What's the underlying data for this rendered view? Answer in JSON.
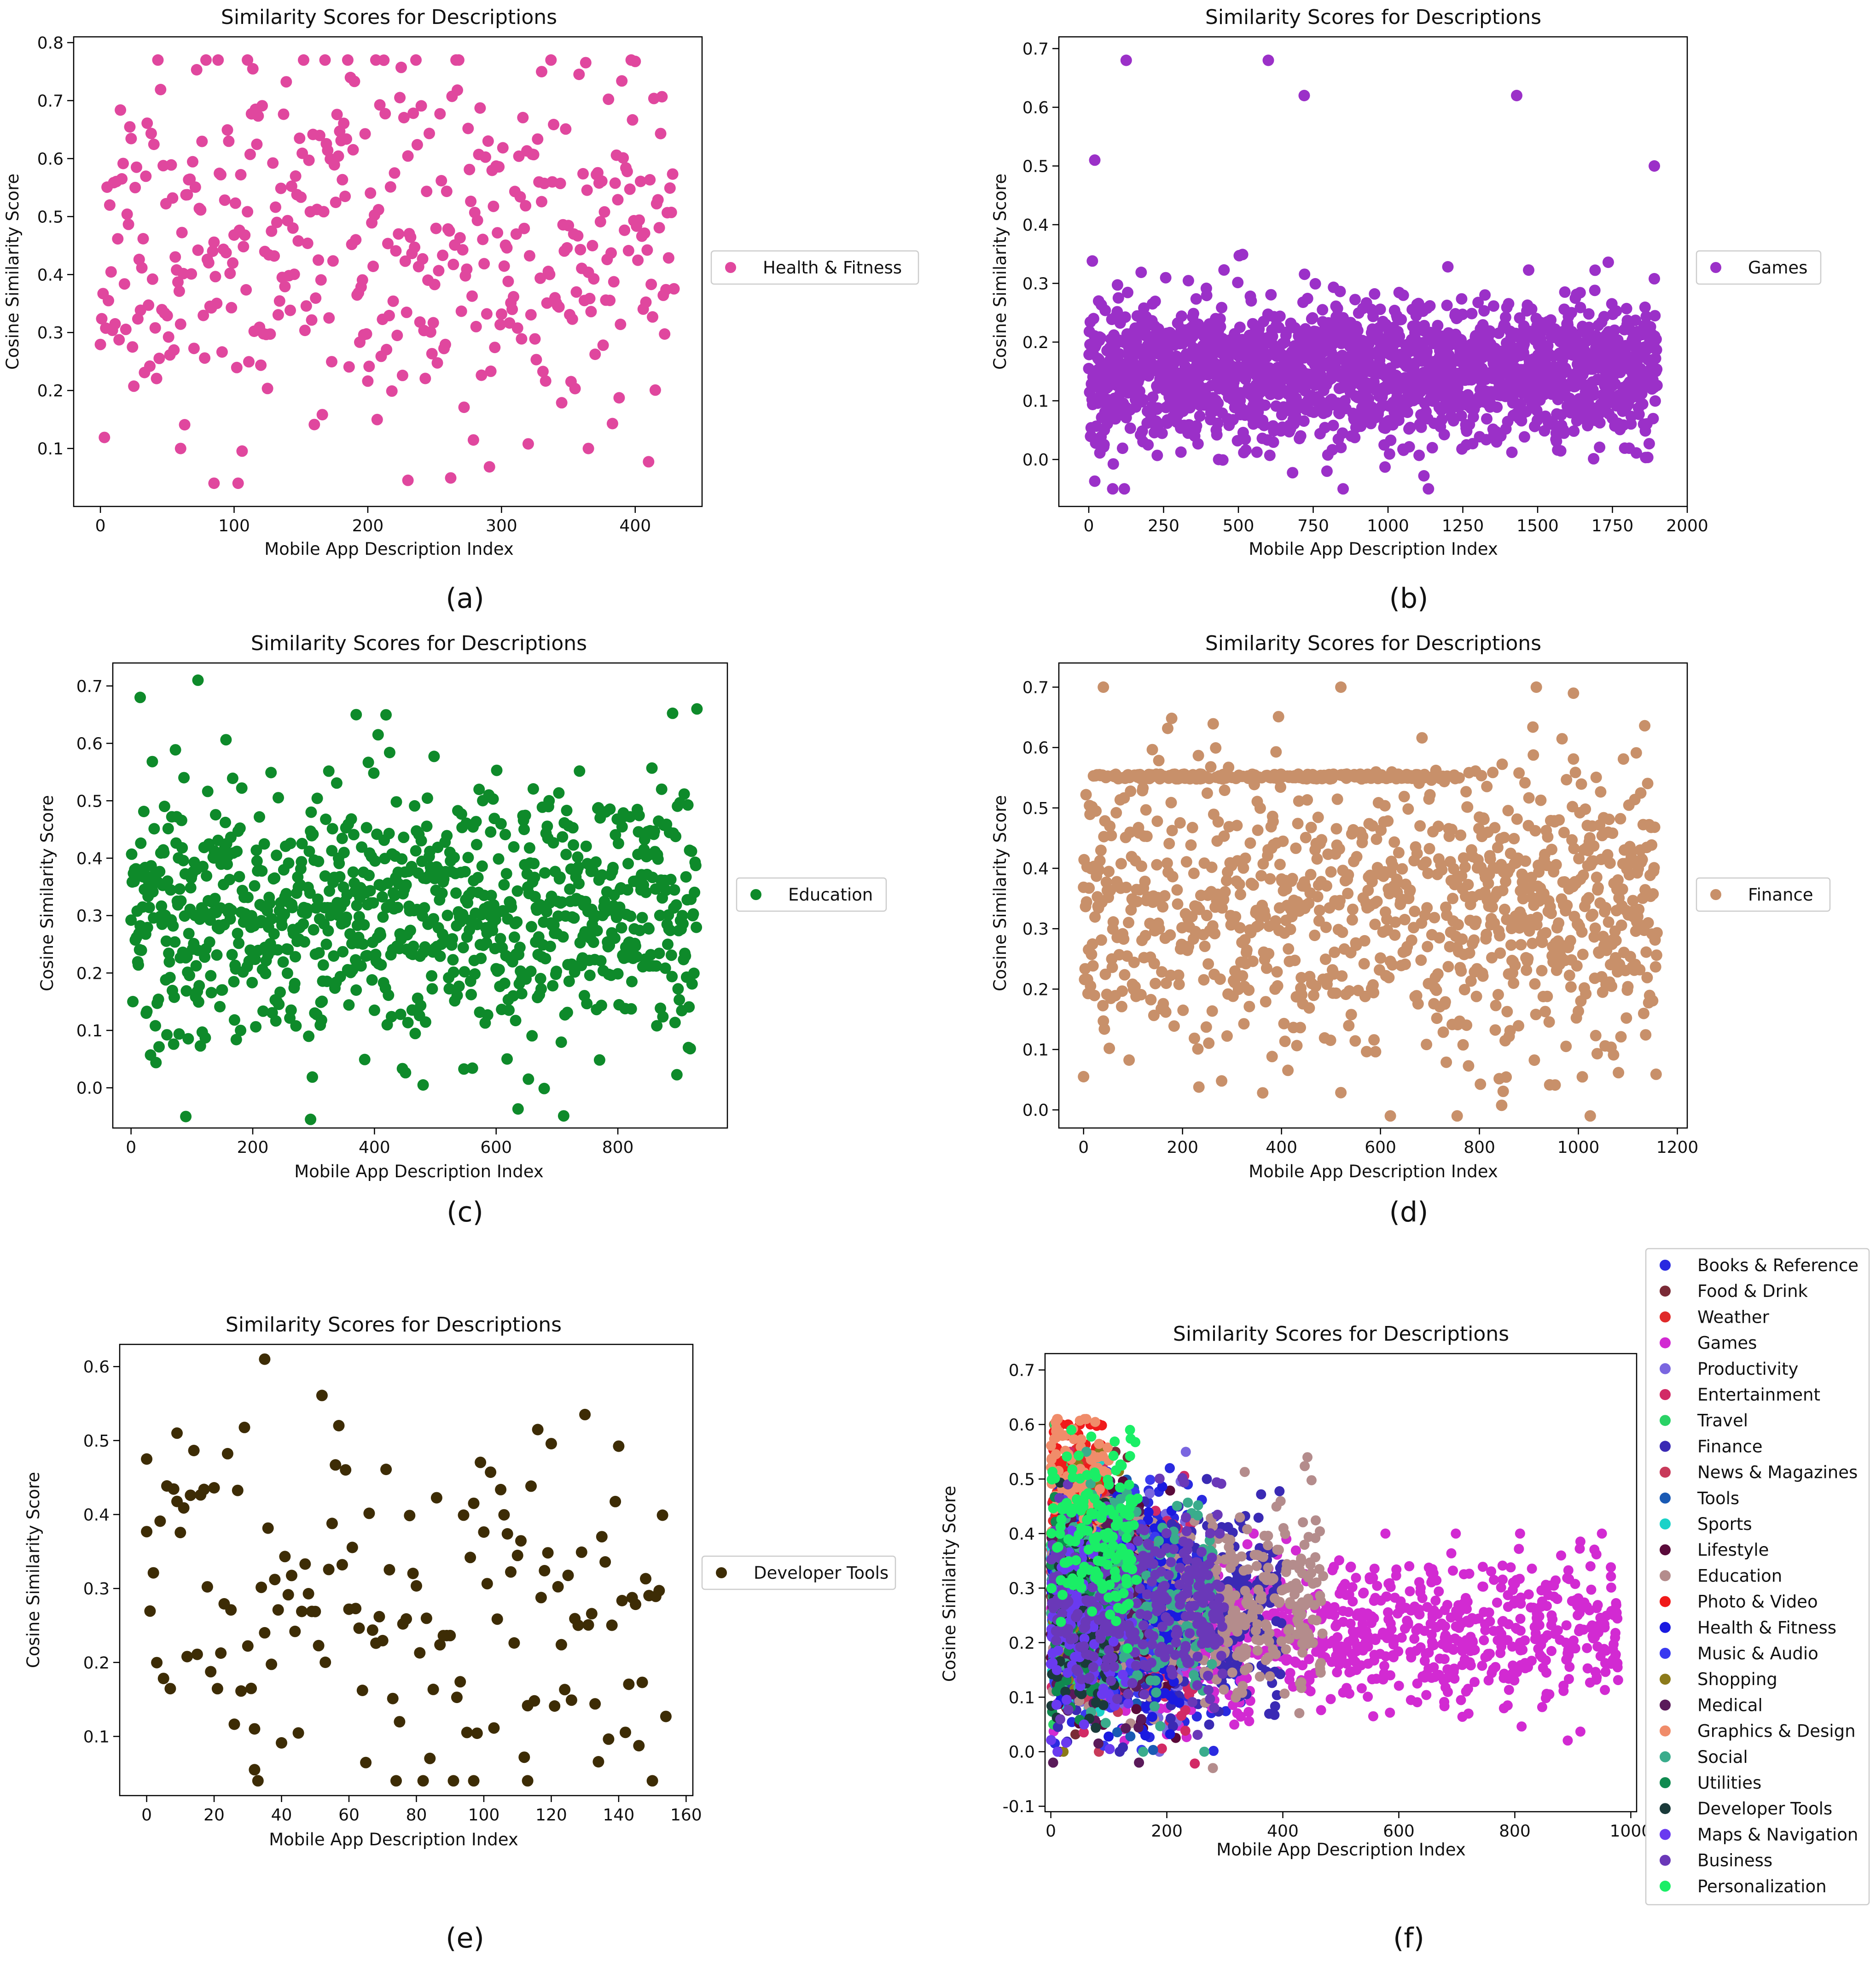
{
  "figure": {
    "panel_labels": [
      "(a)",
      "(b)",
      "(c)",
      "(d)",
      "(e)",
      "(f)"
    ]
  },
  "chart_data": [
    {
      "type": "scatter",
      "title": "Similarity Scores for Descriptions",
      "xlabel": "Mobile App Description Index",
      "ylabel": "Cosine Similarity Score",
      "xlim": [
        -20,
        450
      ],
      "ylim": [
        0.0,
        0.81
      ],
      "xticks": [
        0,
        100,
        200,
        300,
        400
      ],
      "yticks": [
        0.1,
        0.2,
        0.3,
        0.4,
        0.5,
        0.6,
        0.7,
        0.8
      ],
      "grid": false,
      "legend_position": "right",
      "series": [
        {
          "name": "Health & Fitness",
          "color": "#e0479e",
          "n": 430,
          "center": 0.45,
          "spread": 0.15,
          "clip": [
            0.04,
            0.77
          ],
          "seed": 11,
          "extremes": [
            [
              110,
              0.77
            ],
            [
              330,
              0.75
            ],
            [
              85,
              0.04
            ],
            [
              230,
              0.045
            ],
            [
              60,
              0.1
            ],
            [
              365,
              0.1
            ]
          ]
        }
      ]
    },
    {
      "type": "scatter",
      "title": "Similarity Scores for Descriptions",
      "xlabel": "Mobile App Description Index",
      "ylabel": "Cosine Similarity Score",
      "xlim": [
        -100,
        2000
      ],
      "ylim": [
        -0.08,
        0.72
      ],
      "xticks": [
        0,
        250,
        500,
        750,
        1000,
        1250,
        1500,
        1750,
        2000
      ],
      "yticks": [
        0.0,
        0.1,
        0.2,
        0.3,
        0.4,
        0.5,
        0.6,
        0.7
      ],
      "grid": false,
      "legend_position": "right",
      "series": [
        {
          "name": "Games",
          "color": "#9b30c8",
          "n": 1900,
          "center": 0.15,
          "spread": 0.06,
          "clip": [
            -0.05,
            0.68
          ],
          "seed": 22,
          "extremes": [
            [
              125,
              0.68
            ],
            [
              600,
              0.68
            ],
            [
              720,
              0.62
            ],
            [
              1430,
              0.62
            ],
            [
              20,
              0.51
            ],
            [
              1890,
              0.5
            ],
            [
              80,
              -0.05
            ],
            [
              850,
              -0.05
            ]
          ]
        }
      ]
    },
    {
      "type": "scatter",
      "title": "Similarity Scores for Descriptions",
      "xlabel": "Mobile App Description Index",
      "ylabel": "Cosine Similarity Score",
      "xlim": [
        -30,
        980
      ],
      "ylim": [
        -0.07,
        0.74
      ],
      "xticks": [
        0,
        200,
        400,
        600,
        800
      ],
      "yticks": [
        0.0,
        0.1,
        0.2,
        0.3,
        0.4,
        0.5,
        0.6,
        0.7
      ],
      "grid": false,
      "legend_position": "right",
      "series": [
        {
          "name": "Education",
          "color": "#0e8a2a",
          "n": 930,
          "center": 0.3,
          "spread": 0.11,
          "clip": [
            -0.06,
            0.71
          ],
          "seed": 33,
          "extremes": [
            [
              110,
              0.71
            ],
            [
              15,
              0.68
            ],
            [
              930,
              0.66
            ],
            [
              370,
              0.65
            ],
            [
              90,
              -0.05
            ],
            [
              295,
              -0.055
            ],
            [
              480,
              0.005
            ]
          ]
        }
      ]
    },
    {
      "type": "scatter",
      "title": "Similarity Scores for Descriptions",
      "xlabel": "Mobile App Description Index",
      "ylabel": "Cosine Similarity Score",
      "xlim": [
        -50,
        1220
      ],
      "ylim": [
        -0.03,
        0.74
      ],
      "xticks": [
        0,
        200,
        400,
        600,
        800,
        1000,
        1200
      ],
      "yticks": [
        0.0,
        0.1,
        0.2,
        0.3,
        0.4,
        0.5,
        0.6,
        0.7
      ],
      "grid": false,
      "legend_position": "right",
      "series": [
        {
          "name": "Finance",
          "color": "#c8906a",
          "n": 1160,
          "center": 0.33,
          "spread": 0.12,
          "clip": [
            -0.01,
            0.7
          ],
          "seed": 44,
          "band_y": 0.552,
          "band_x": [
            20,
            760
          ],
          "extremes": [
            [
              40,
              0.7
            ],
            [
              520,
              0.7
            ],
            [
              990,
              0.69
            ],
            [
              0,
              0.055
            ],
            [
              620,
              -0.01
            ],
            [
              755,
              -0.01
            ]
          ]
        }
      ]
    },
    {
      "type": "scatter",
      "title": "Similarity Scores for Descriptions",
      "xlabel": "Mobile App Description Index",
      "ylabel": "Cosine Similarity Score",
      "xlim": [
        -8,
        162
      ],
      "ylim": [
        0.02,
        0.63
      ],
      "xticks": [
        0,
        20,
        40,
        60,
        80,
        100,
        120,
        140,
        160
      ],
      "yticks": [
        0.1,
        0.2,
        0.3,
        0.4,
        0.5,
        0.6
      ],
      "grid": false,
      "legend_position": "right",
      "series": [
        {
          "name": "Developer Tools",
          "color": "#3d2c05",
          "n": 155,
          "center": 0.27,
          "spread": 0.12,
          "clip": [
            0.04,
            0.61
          ],
          "seed": 55,
          "extremes": [
            [
              35,
              0.61
            ],
            [
              9,
              0.51
            ],
            [
              0,
              0.475
            ],
            [
              97,
              0.04
            ],
            [
              113,
              0.04
            ],
            [
              32,
              0.055
            ]
          ]
        }
      ]
    },
    {
      "type": "scatter",
      "title": "Similarity Scores for Descriptions",
      "xlabel": "Mobile App Description Index",
      "ylabel": "Cosine Similarity Score",
      "xlim": [
        -10,
        1010
      ],
      "ylim": [
        -0.11,
        0.73
      ],
      "xticks": [
        0,
        200,
        400,
        600,
        800,
        1000
      ],
      "yticks": [
        -0.1,
        0.0,
        0.1,
        0.2,
        0.3,
        0.4,
        0.5,
        0.6,
        0.7
      ],
      "grid": false,
      "legend_position": "top-right, outside",
      "series": [
        {
          "name": "Books & Reference",
          "color": "#2a2ae0",
          "n": 330,
          "center": 0.26,
          "spread": 0.1,
          "clip": [
            -0.02,
            0.52
          ],
          "seed": 101,
          "xmax": 330
        },
        {
          "name": "Food & Drink",
          "color": "#7a2a36",
          "n": 150,
          "center": 0.27,
          "spread": 0.1,
          "clip": [
            -0.02,
            0.55
          ],
          "seed": 102,
          "xmax": 150
        },
        {
          "name": "Weather",
          "color": "#e02a2a",
          "n": 90,
          "center": 0.4,
          "spread": 0.1,
          "clip": [
            0.1,
            0.6
          ],
          "seed": 103,
          "xmax": 90
        },
        {
          "name": "Games",
          "color": "#d22ad2",
          "n": 980,
          "center": 0.22,
          "spread": 0.07,
          "clip": [
            -0.05,
            0.4
          ],
          "seed": 104,
          "xmax": 980
        },
        {
          "name": "Productivity",
          "color": "#7a66e0",
          "n": 250,
          "center": 0.27,
          "spread": 0.1,
          "clip": [
            0.0,
            0.55
          ],
          "seed": 105,
          "xmax": 250
        },
        {
          "name": "Entertainment",
          "color": "#d22a66",
          "n": 250,
          "center": 0.26,
          "spread": 0.1,
          "clip": [
            -0.07,
            0.55
          ],
          "seed": 106,
          "xmax": 250
        },
        {
          "name": "Travel",
          "color": "#2ad266",
          "n": 110,
          "center": 0.35,
          "spread": 0.1,
          "clip": [
            0.05,
            0.6
          ],
          "seed": 107,
          "xmax": 110
        },
        {
          "name": "Finance",
          "color": "#3a2ab4",
          "n": 400,
          "center": 0.26,
          "spread": 0.09,
          "clip": [
            0.0,
            0.5
          ],
          "seed": 108,
          "xmax": 400
        },
        {
          "name": "News & Magazines",
          "color": "#c83a5a",
          "n": 140,
          "center": 0.3,
          "spread": 0.1,
          "clip": [
            0.0,
            0.55
          ],
          "seed": 109,
          "xmax": 140
        },
        {
          "name": "Tools",
          "color": "#1a5ab4",
          "n": 180,
          "center": 0.27,
          "spread": 0.09,
          "clip": [
            0.0,
            0.5
          ],
          "seed": 110,
          "xmax": 180
        },
        {
          "name": "Sports",
          "color": "#1ad2c8",
          "n": 120,
          "center": 0.3,
          "spread": 0.1,
          "clip": [
            0.0,
            0.55
          ],
          "seed": 111,
          "xmax": 120
        },
        {
          "name": "Lifestyle",
          "color": "#5a0a3a",
          "n": 220,
          "center": 0.27,
          "spread": 0.1,
          "clip": [
            0.0,
            0.55
          ],
          "seed": 112,
          "xmax": 220
        },
        {
          "name": "Education",
          "color": "#b48c8c",
          "n": 470,
          "center": 0.26,
          "spread": 0.09,
          "clip": [
            -0.03,
            0.54
          ],
          "seed": 113,
          "xmax": 470
        },
        {
          "name": "Photo & Video",
          "color": "#f01a1a",
          "n": 80,
          "center": 0.5,
          "spread": 0.08,
          "clip": [
            0.2,
            0.6
          ],
          "seed": 114,
          "xmax": 90
        },
        {
          "name": "Health & Fitness",
          "color": "#1a1ae0",
          "n": 230,
          "center": 0.27,
          "spread": 0.1,
          "clip": [
            -0.02,
            0.55
          ],
          "seed": 115,
          "xmax": 230
        },
        {
          "name": "Music & Audio",
          "color": "#3a3af0",
          "n": 180,
          "center": 0.28,
          "spread": 0.1,
          "clip": [
            0.0,
            0.55
          ],
          "seed": 116,
          "xmax": 180
        },
        {
          "name": "Shopping",
          "color": "#8c7a1a",
          "n": 120,
          "center": 0.3,
          "spread": 0.1,
          "clip": [
            0.0,
            0.55
          ],
          "seed": 117,
          "xmax": 120
        },
        {
          "name": "Medical",
          "color": "#5a1a5a",
          "n": 160,
          "center": 0.27,
          "spread": 0.1,
          "clip": [
            -0.02,
            0.55
          ],
          "seed": 118,
          "xmax": 160
        },
        {
          "name": "Graphics & Design",
          "color": "#f08c6a",
          "n": 90,
          "center": 0.5,
          "spread": 0.07,
          "clip": [
            0.25,
            0.61
          ],
          "seed": 119,
          "xmax": 100
        },
        {
          "name": "Social",
          "color": "#3aac8c",
          "n": 280,
          "center": 0.27,
          "spread": 0.1,
          "clip": [
            0.0,
            0.55
          ],
          "seed": 120,
          "xmax": 280
        },
        {
          "name": "Utilities",
          "color": "#108a50",
          "n": 100,
          "center": 0.28,
          "spread": 0.1,
          "clip": [
            -0.04,
            0.69
          ],
          "seed": 121,
          "xmax": 100
        },
        {
          "name": "Developer Tools",
          "color": "#1a3a3a",
          "n": 110,
          "center": 0.25,
          "spread": 0.1,
          "clip": [
            -0.04,
            0.5
          ],
          "seed": 122,
          "xmax": 110
        },
        {
          "name": "Maps & Navigation",
          "color": "#6a3af0",
          "n": 140,
          "center": 0.27,
          "spread": 0.1,
          "clip": [
            0.0,
            0.55
          ],
          "seed": 123,
          "xmax": 140
        },
        {
          "name": "Business",
          "color": "#6a38b8",
          "n": 300,
          "center": 0.28,
          "spread": 0.09,
          "clip": [
            0.0,
            0.54
          ],
          "seed": 124,
          "xmax": 300
        },
        {
          "name": "Personalization",
          "color": "#1aee66",
          "n": 150,
          "center": 0.4,
          "spread": 0.08,
          "clip": [
            0.1,
            0.59
          ],
          "seed": 125,
          "xmax": 150
        }
      ]
    }
  ]
}
